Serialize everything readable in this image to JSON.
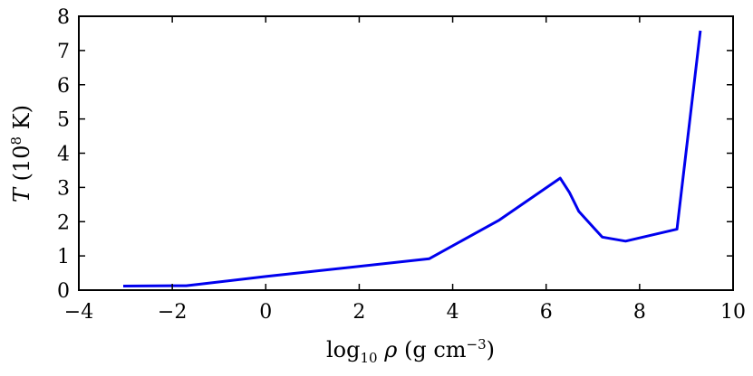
{
  "chart_data": {
    "type": "line",
    "title": "",
    "xlabel": "log10 ρ (g cm−3)",
    "ylabel": "T (10^8 K)",
    "xlim": [
      -4,
      10
    ],
    "ylim": [
      0,
      8
    ],
    "xticks": [
      -4,
      -2,
      0,
      2,
      4,
      6,
      8,
      10
    ],
    "xtick_labels": [
      "−4",
      "−2",
      "0",
      "2",
      "4",
      "6",
      "8",
      "10"
    ],
    "yticks": [
      0,
      1,
      2,
      3,
      4,
      5,
      6,
      7,
      8
    ],
    "ytick_labels": [
      "0",
      "1",
      "2",
      "3",
      "4",
      "5",
      "6",
      "7",
      "8"
    ],
    "grid": false,
    "legend": "none",
    "series": [
      {
        "color": "#0000ee",
        "x": [
          -3.05,
          -2.0,
          -1.7,
          0.0,
          3.5,
          5.0,
          6.3,
          6.5,
          6.7,
          6.9,
          7.2,
          7.7,
          8.8,
          9.3
        ],
        "y": [
          0.12,
          0.13,
          0.13,
          0.4,
          0.92,
          2.05,
          3.27,
          2.85,
          2.3,
          2.0,
          1.55,
          1.43,
          1.78,
          7.58
        ]
      }
    ]
  }
}
